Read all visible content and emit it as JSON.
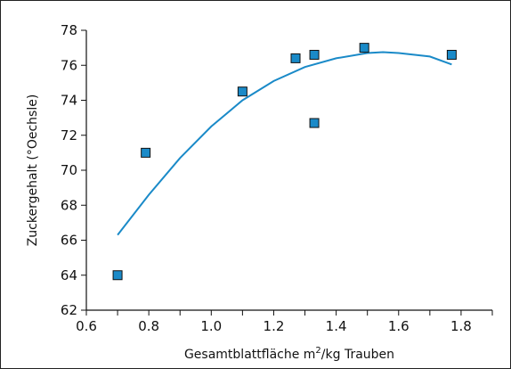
{
  "chart_data": {
    "type": "scatter",
    "xlabel": "Gesamtblattfläche m",
    "xlabel_sup": "2",
    "xlabel_suffix": "/kg Trauben",
    "ylabel": "Zuckergehalt (°Oechsle)",
    "xlim": [
      0.6,
      1.9
    ],
    "ylim": [
      62,
      78
    ],
    "x_ticks": [
      "0.6",
      "0.8",
      "1.0",
      "1.2",
      "1.4",
      "1.6",
      "1.8"
    ],
    "y_ticks": [
      "62",
      "64",
      "66",
      "68",
      "70",
      "72",
      "74",
      "76",
      "78"
    ],
    "grid": false,
    "colors": {
      "marker": "#1a8ac8",
      "marker_edge": "#111111",
      "trend": "#1a8ac8"
    },
    "points": [
      {
        "x": 0.7,
        "y": 64.0
      },
      {
        "x": 0.79,
        "y": 71.0
      },
      {
        "x": 1.1,
        "y": 74.5
      },
      {
        "x": 1.27,
        "y": 76.4
      },
      {
        "x": 1.33,
        "y": 76.6
      },
      {
        "x": 1.33,
        "y": 72.7
      },
      {
        "x": 1.49,
        "y": 77.0
      },
      {
        "x": 1.77,
        "y": 76.6
      }
    ],
    "trendline": {
      "type": "polynomial",
      "x": [
        0.7,
        0.8,
        0.9,
        1.0,
        1.1,
        1.2,
        1.3,
        1.4,
        1.5,
        1.55,
        1.6,
        1.7,
        1.77
      ],
      "y": [
        66.3,
        68.6,
        70.7,
        72.5,
        74.0,
        75.1,
        75.9,
        76.4,
        76.7,
        76.75,
        76.7,
        76.5,
        76.05
      ]
    }
  }
}
